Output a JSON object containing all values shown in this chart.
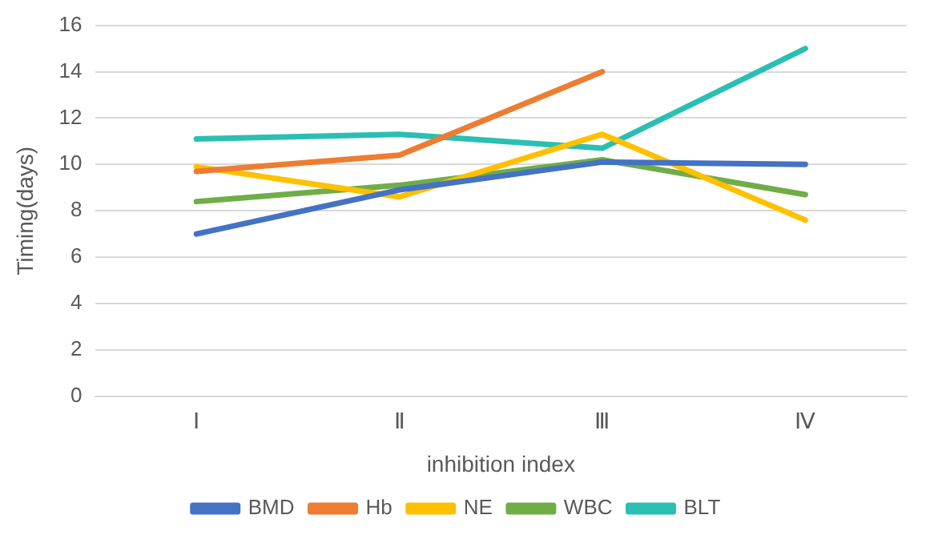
{
  "chart_data": {
    "type": "line",
    "xlabel": "inhibition index",
    "ylabel": "Timing(days)",
    "categories": [
      "Ⅰ",
      "Ⅱ",
      "Ⅲ",
      "Ⅳ"
    ],
    "series": [
      {
        "name": "BMD",
        "color": "#4472c4",
        "values": [
          7.0,
          8.9,
          10.1,
          10.0
        ]
      },
      {
        "name": "Hb",
        "color": "#ed7d31",
        "values": [
          9.7,
          10.4,
          14.0,
          null
        ]
      },
      {
        "name": "NE",
        "color": "#ffc000",
        "values": [
          9.9,
          8.6,
          11.3,
          7.6
        ]
      },
      {
        "name": "WBC",
        "color": "#70ad47",
        "values": [
          8.4,
          9.1,
          10.2,
          8.7
        ]
      },
      {
        "name": "BLT",
        "color": "#2bbfb3",
        "values": [
          11.1,
          11.3,
          10.7,
          15.0
        ]
      }
    ],
    "ylim": [
      0,
      16
    ],
    "yticks": [
      0,
      2,
      4,
      6,
      8,
      10,
      12,
      14,
      16
    ],
    "grid": "y",
    "legend": "bottom",
    "marker": "none",
    "line_style": "solid"
  }
}
